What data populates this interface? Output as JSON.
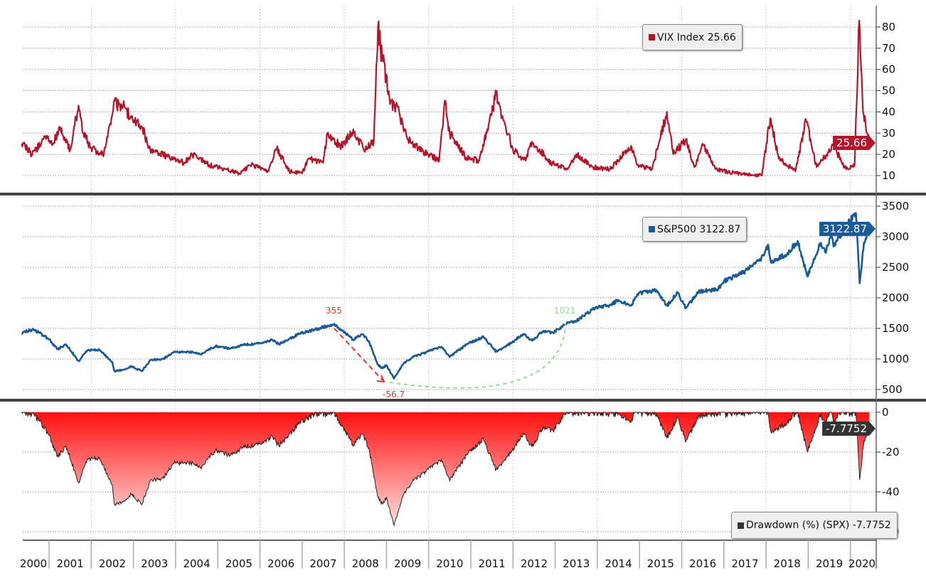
{
  "chart_data": [
    {
      "type": "line",
      "title": "VIX Index",
      "legend": "VIX Index 25.66",
      "last_value": "25.66",
      "color": "#b5152b",
      "ylim": [
        5,
        85
      ],
      "yticks": [
        10,
        20,
        30,
        40,
        50,
        60,
        70,
        80
      ],
      "x": [
        2000.35,
        2000.6,
        2000.9,
        2001.1,
        2001.25,
        2001.5,
        2001.7,
        2001.8,
        2002.0,
        2002.3,
        2002.55,
        2002.8,
        2003.0,
        2003.2,
        2003.4,
        2003.8,
        2004.2,
        2004.4,
        2004.8,
        2005.2,
        2005.5,
        2005.8,
        2006.2,
        2006.4,
        2006.7,
        2007.0,
        2007.15,
        2007.5,
        2007.6,
        2007.9,
        2008.2,
        2008.5,
        2008.7,
        2008.8,
        2008.9,
        2009.1,
        2009.3,
        2009.5,
        2009.9,
        2010.25,
        2010.38,
        2010.5,
        2010.9,
        2011.2,
        2011.6,
        2011.8,
        2012.0,
        2012.3,
        2012.45,
        2012.9,
        2013.3,
        2013.5,
        2013.9,
        2014.3,
        2014.8,
        2014.95,
        2015.3,
        2015.65,
        2015.8,
        2016.1,
        2016.3,
        2016.5,
        2016.8,
        2017.3,
        2017.9,
        2018.1,
        2018.3,
        2018.7,
        2018.95,
        2019.2,
        2019.6,
        2019.9,
        2020.1,
        2020.21,
        2020.3,
        2020.4,
        2020.45
      ],
      "values": [
        25,
        20,
        28,
        25,
        33,
        22,
        43,
        30,
        23,
        20,
        45,
        42,
        35,
        33,
        22,
        19,
        16,
        20,
        15,
        13,
        11,
        15,
        12,
        23,
        12,
        11,
        18,
        16,
        30,
        24,
        30,
        22,
        26,
        80,
        65,
        45,
        40,
        27,
        21,
        17,
        45,
        30,
        18,
        17,
        48,
        35,
        22,
        17,
        26,
        16,
        13,
        20,
        14,
        13,
        24,
        15,
        13,
        40,
        20,
        27,
        14,
        25,
        13,
        11,
        10,
        37,
        18,
        12,
        36,
        14,
        24,
        13,
        15,
        83,
        40,
        30,
        25.66
      ]
    },
    {
      "type": "line",
      "title": "S&P500",
      "legend": "S&P500 3122.87",
      "last_value": "3122.87",
      "color": "#1a5a96",
      "ylim": [
        400,
        3600
      ],
      "yticks": [
        500,
        1000,
        1500,
        2000,
        2500,
        3000,
        3500
      ],
      "annotations": {
        "peak_label": "355",
        "trough_label": "-56.7",
        "recovery_label": "1021"
      },
      "x": [
        2000.35,
        2000.6,
        2000.75,
        2001.0,
        2001.2,
        2001.4,
        2001.7,
        2001.9,
        2002.2,
        2002.5,
        2002.55,
        2002.75,
        2002.95,
        2003.2,
        2003.4,
        2003.7,
        2003.95,
        2004.3,
        2004.6,
        2004.95,
        2005.3,
        2005.6,
        2005.95,
        2006.3,
        2006.45,
        2006.7,
        2006.95,
        2007.3,
        2007.6,
        2007.75,
        2007.95,
        2008.2,
        2008.45,
        2008.6,
        2008.8,
        2008.9,
        2009.0,
        2009.18,
        2009.4,
        2009.6,
        2009.95,
        2010.3,
        2010.5,
        2010.7,
        2010.95,
        2011.3,
        2011.6,
        2011.8,
        2011.95,
        2012.25,
        2012.45,
        2012.7,
        2012.95,
        2013.3,
        2013.5,
        2013.95,
        2014.3,
        2014.5,
        2014.8,
        2014.95,
        2015.4,
        2015.65,
        2015.9,
        2016.1,
        2016.4,
        2016.85,
        2017.0,
        2017.5,
        2017.95,
        2018.05,
        2018.12,
        2018.5,
        2018.75,
        2018.98,
        2019.3,
        2019.4,
        2019.55,
        2019.6,
        2019.95,
        2020.13,
        2020.22,
        2020.32,
        2020.45
      ],
      "values": [
        1420,
        1480,
        1440,
        1320,
        1160,
        1240,
        965,
        1140,
        1150,
        950,
        800,
        820,
        880,
        800,
        980,
        1000,
        1110,
        1120,
        1080,
        1210,
        1170,
        1230,
        1250,
        1310,
        1240,
        1330,
        1420,
        1480,
        1540,
        1565,
        1470,
        1320,
        1400,
        1260,
        900,
        850,
        900,
        680,
        920,
        1020,
        1115,
        1200,
        1030,
        1140,
        1257,
        1360,
        1120,
        1200,
        1260,
        1410,
        1300,
        1450,
        1430,
        1590,
        1620,
        1840,
        1880,
        1960,
        1870,
        2060,
        2130,
        1870,
        2090,
        1830,
        2100,
        2140,
        2270,
        2430,
        2690,
        2870,
        2580,
        2720,
        2930,
        2350,
        2900,
        2750,
        3020,
        2840,
        3230,
        3386,
        2237,
        2900,
        3122.87
      ]
    },
    {
      "type": "area",
      "title": "Drawdown (%) (SPX)",
      "legend": "Drawdown (%) (SPX) -7.7752",
      "last_value": "-7.7752",
      "derived_from": "S&P500",
      "color": "#ff1a1a",
      "ylim": [
        -62,
        0
      ],
      "yticks": [
        0,
        -20,
        -40,
        -60
      ]
    }
  ],
  "xaxis": {
    "years": [
      "2000",
      "2001",
      "2002",
      "2003",
      "2004",
      "2005",
      "2006",
      "2007",
      "2008",
      "2009",
      "2010",
      "2011",
      "2012",
      "2013",
      "2014",
      "2015",
      "2016",
      "2017",
      "2018",
      "2019",
      "2020"
    ]
  }
}
